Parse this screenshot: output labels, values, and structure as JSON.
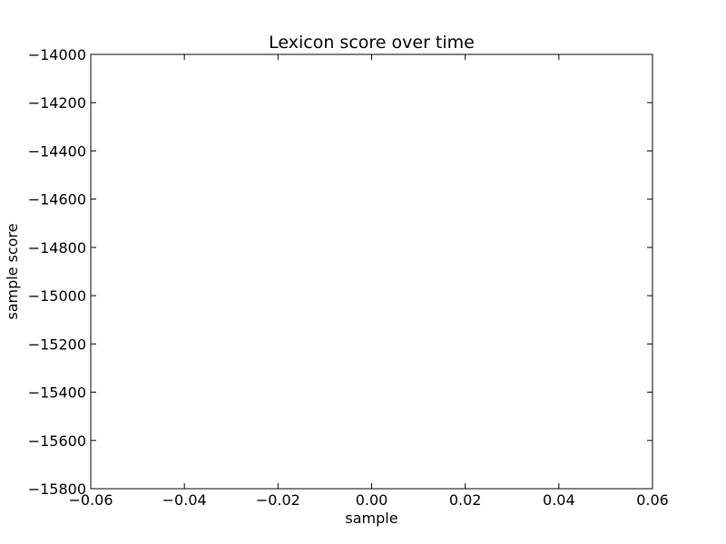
{
  "chart_data": {
    "type": "line",
    "title": "Lexicon score over time",
    "xlabel": "sample",
    "ylabel": "sample score",
    "xlim": [
      -0.06,
      0.06
    ],
    "ylim": [
      -15800,
      -14000
    ],
    "x_ticks": [
      -0.06,
      -0.04,
      -0.02,
      0.0,
      0.02,
      0.04,
      0.06
    ],
    "x_tick_labels": [
      "−0.06",
      "−0.04",
      "−0.02",
      "0.00",
      "0.02",
      "0.04",
      "0.06"
    ],
    "y_ticks": [
      -14000,
      -14200,
      -14400,
      -14600,
      -14800,
      -15000,
      -15200,
      -15400,
      -15600,
      -15800
    ],
    "y_tick_labels": [
      "−14000",
      "−14200",
      "−14400",
      "−14600",
      "−14800",
      "−15000",
      "−15200",
      "−15400",
      "−15600",
      "−15800"
    ],
    "series": [],
    "grid": false,
    "colors": {
      "axes": "#000000",
      "background": "#ffffff"
    }
  }
}
